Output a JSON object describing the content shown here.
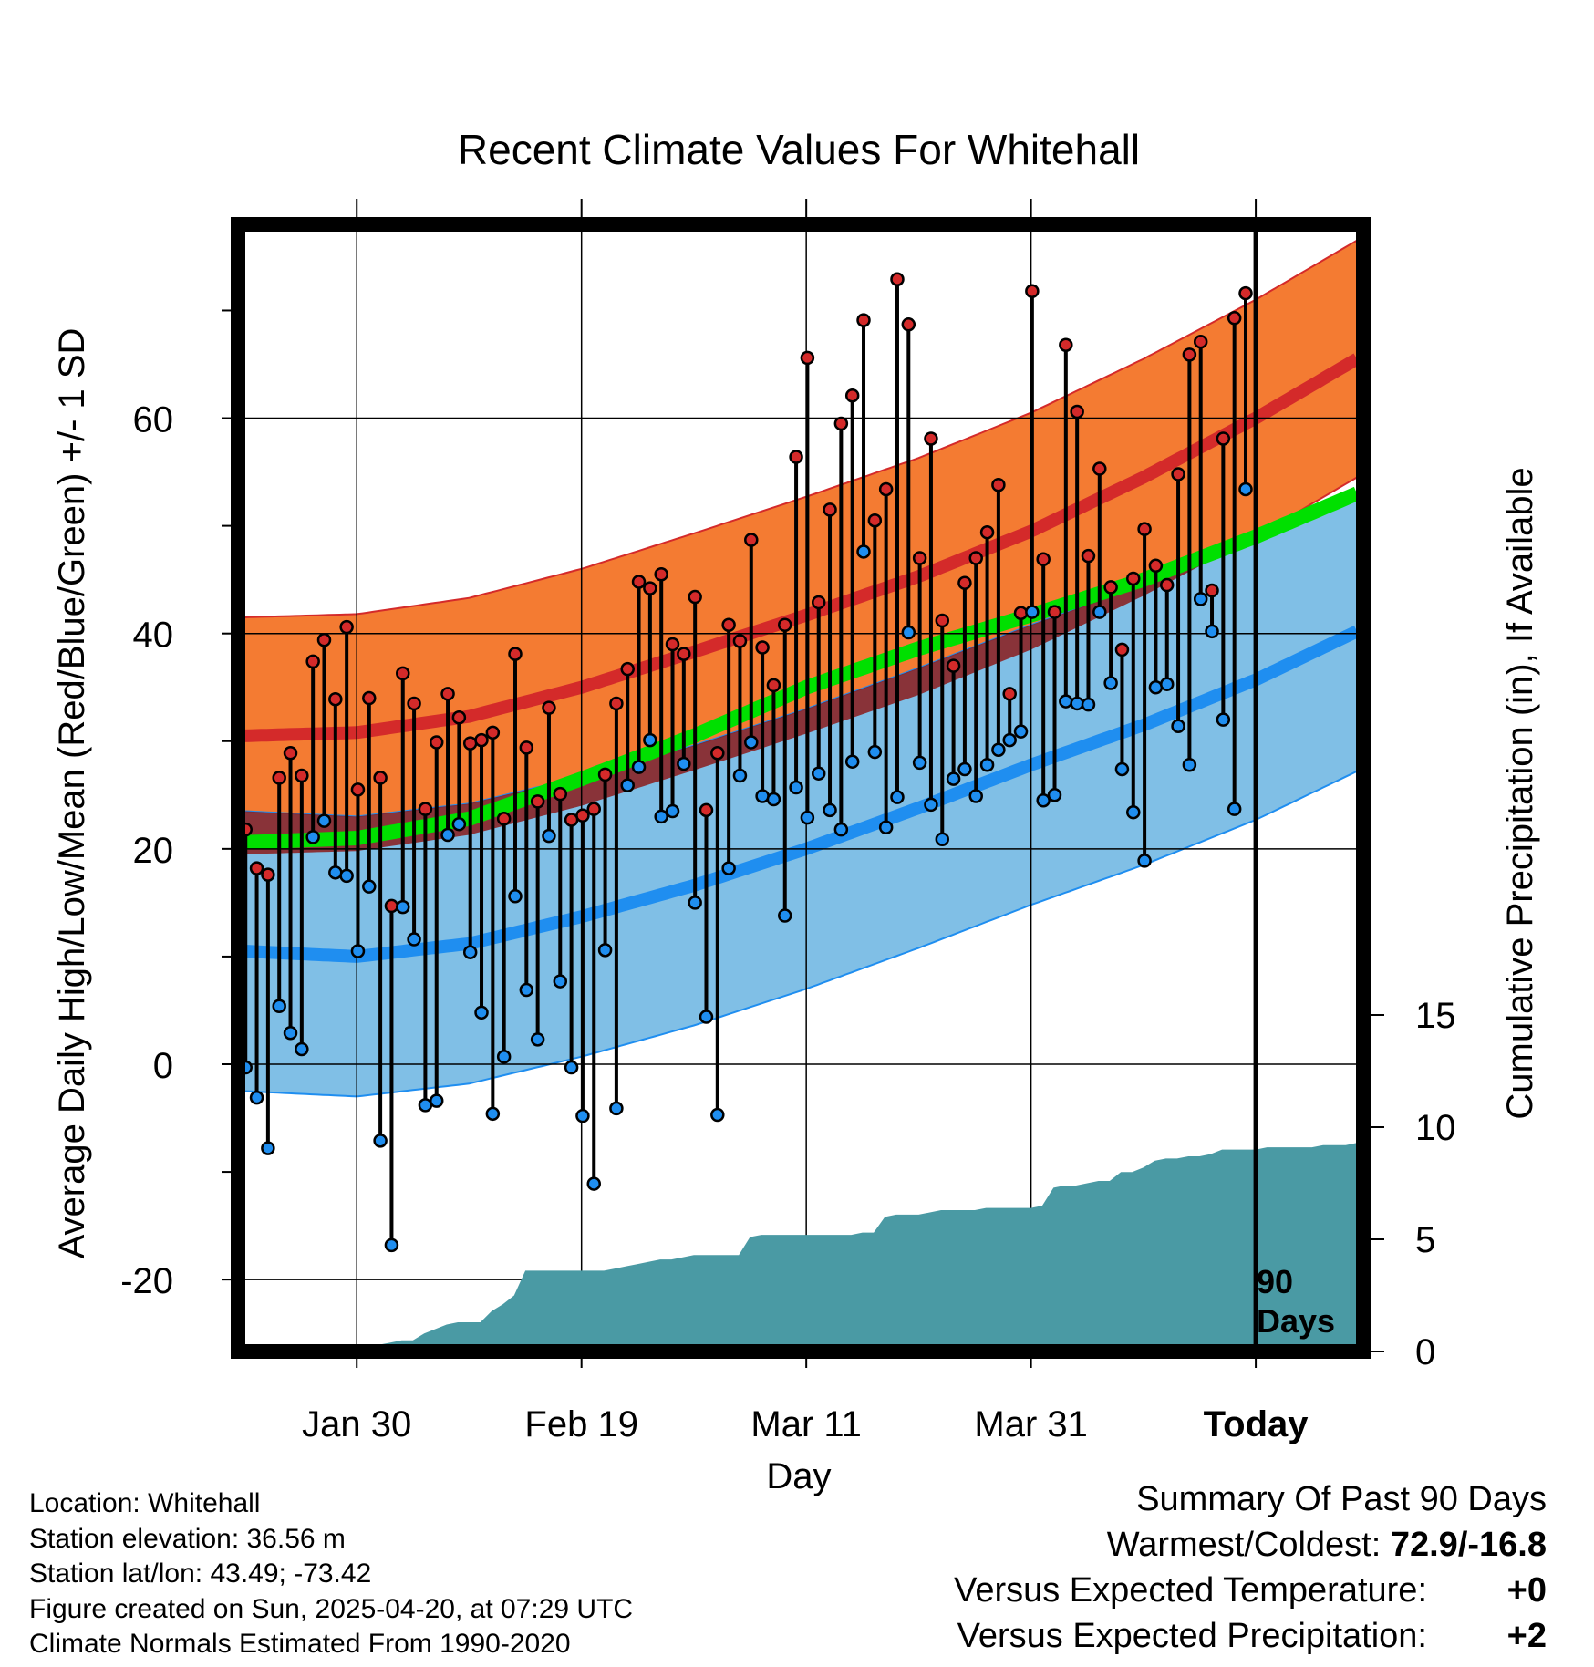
{
  "chart_data": {
    "type": "line",
    "title": "Recent Climate Values For Whitehall",
    "xlabel": "Day",
    "ylabel": "Average Daily High/Low/Mean (Red/Blue/Green) +/- 1 SD",
    "y2label": "Cumulative Precipitation (in), If Available",
    "x_ticks": [
      "Jan 30",
      "Feb 19",
      "Mar 11",
      "Mar 31",
      "Today"
    ],
    "y_ticks": [
      "-20",
      "0",
      "20",
      "40",
      "60"
    ],
    "y2_ticks": [
      "0",
      "5",
      "10",
      "15"
    ],
    "ylim": [
      -26,
      78
    ],
    "y2lim": [
      0,
      15
    ],
    "grid": true,
    "today_label": "90\nDays",
    "normals": {
      "day": [
        0,
        10,
        20,
        30,
        40,
        50,
        60,
        70,
        80,
        90,
        99
      ],
      "high": [
        30.5,
        30.8,
        32.3,
        35.0,
        38.3,
        41.7,
        45.3,
        49.5,
        54.5,
        60.0,
        65.5
      ],
      "high_sd": 11.0,
      "low": [
        10.5,
        10.0,
        11.2,
        13.7,
        16.6,
        20.0,
        23.8,
        27.8,
        31.5,
        35.7,
        40.2
      ],
      "low_sd": 13.0,
      "mean": [
        20.6,
        21.0,
        22.8,
        26.5,
        30.5,
        35.0,
        38.6,
        41.7,
        45.0,
        49.0,
        53.0
      ]
    },
    "series": [
      {
        "name": "High",
        "values": [
          21.8,
          18.2,
          17.6,
          26.6,
          28.9,
          26.8,
          37.4,
          39.4,
          33.9,
          40.6,
          25.5,
          34.0,
          26.6,
          14.7,
          36.3,
          33.5,
          23.7,
          29.9,
          34.4,
          32.2,
          29.8,
          30.1,
          30.8,
          22.8,
          38.1,
          29.4,
          24.4,
          33.1,
          25.1,
          22.7,
          23.1,
          23.7,
          26.9,
          33.5,
          36.7,
          44.8,
          44.2,
          45.5,
          39.0,
          38.1,
          43.4,
          23.6,
          28.9,
          40.8,
          39.3,
          48.7,
          38.7,
          35.2,
          40.8,
          56.4,
          65.6,
          42.9,
          51.5,
          59.5,
          62.1,
          69.1,
          50.5,
          53.4,
          72.9,
          68.7,
          47.0,
          58.1,
          41.2,
          37.0,
          44.7,
          47.0,
          49.4,
          53.8,
          34.4,
          41.9,
          71.8,
          46.9,
          42.0,
          66.8,
          60.6,
          47.2,
          55.3,
          44.3,
          38.5,
          45.1,
          49.7,
          46.3,
          44.5,
          54.8,
          65.9,
          67.1,
          44.0,
          58.1,
          69.3,
          71.6
        ]
      },
      {
        "name": "Low",
        "values": [
          -0.3,
          -3.1,
          -7.8,
          5.4,
          2.9,
          1.4,
          21.1,
          22.6,
          17.8,
          17.5,
          10.5,
          16.5,
          -7.1,
          -16.8,
          14.6,
          11.6,
          -3.8,
          -3.4,
          21.3,
          22.3,
          10.4,
          4.8,
          -4.6,
          0.7,
          15.6,
          6.9,
          2.3,
          21.2,
          7.7,
          -0.3,
          -4.8,
          -11.1,
          10.6,
          -4.1,
          25.9,
          27.6,
          30.1,
          23.0,
          23.5,
          27.9,
          15.0,
          4.4,
          -4.7,
          18.2,
          26.8,
          29.9,
          24.9,
          24.6,
          13.8,
          25.7,
          22.9,
          27.0,
          23.6,
          21.8,
          28.1,
          47.6,
          29.0,
          22.0,
          24.8,
          40.1,
          28.0,
          24.1,
          20.9,
          26.5,
          27.4,
          24.9,
          27.8,
          29.2,
          30.1,
          30.9,
          42.0,
          24.5,
          25.0,
          33.7,
          33.5,
          33.4,
          42.0,
          35.4,
          27.4,
          23.4,
          18.9,
          35.0,
          35.3,
          31.4,
          27.8,
          43.2,
          40.2,
          32.0,
          23.7,
          53.4
        ]
      }
    ],
    "precip": {
      "name": "Cumulative Precipitation",
      "day": [
        0,
        10,
        11,
        12,
        13,
        14,
        15,
        16,
        17,
        18,
        19,
        20,
        21,
        22,
        23,
        24,
        25,
        26,
        27,
        28,
        29,
        30,
        31,
        32,
        33,
        34,
        35,
        36,
        37,
        38,
        39,
        40,
        41,
        42,
        43,
        44,
        45,
        46,
        47,
        48,
        49,
        50,
        51,
        52,
        53,
        54,
        55,
        56,
        57,
        58,
        59,
        60,
        61,
        62,
        63,
        64,
        65,
        66,
        67,
        68,
        69,
        70,
        71,
        72,
        73,
        74,
        75,
        76,
        77,
        78,
        79,
        80,
        81,
        82,
        83,
        84,
        85,
        86,
        87,
        88,
        89,
        90,
        91,
        92,
        93,
        94,
        95,
        96,
        97,
        98,
        99
      ],
      "values": [
        0,
        0,
        0.2,
        0.3,
        0.4,
        0.5,
        0.5,
        0.8,
        1.0,
        1.2,
        1.3,
        1.3,
        1.3,
        1.8,
        2.1,
        2.5,
        3.6,
        3.6,
        3.6,
        3.6,
        3.6,
        3.6,
        3.6,
        3.6,
        3.7,
        3.8,
        3.9,
        4.0,
        4.1,
        4.1,
        4.2,
        4.3,
        4.3,
        4.3,
        4.3,
        4.3,
        5.1,
        5.2,
        5.2,
        5.2,
        5.2,
        5.2,
        5.2,
        5.2,
        5.2,
        5.2,
        5.3,
        5.3,
        6.0,
        6.1,
        6.1,
        6.1,
        6.2,
        6.3,
        6.3,
        6.3,
        6.3,
        6.4,
        6.4,
        6.4,
        6.4,
        6.4,
        6.5,
        7.3,
        7.4,
        7.4,
        7.5,
        7.6,
        7.6,
        8.0,
        8.0,
        8.2,
        8.5,
        8.6,
        8.6,
        8.7,
        8.7,
        8.8,
        9.0,
        9.0,
        9.0,
        9.0,
        9.1,
        9.1,
        9.1,
        9.1,
        9.1,
        9.2,
        9.2,
        9.2,
        9.3
      ]
    }
  },
  "footer": {
    "location": "Location: Whitehall",
    "elevation": "Station elevation: 36.56 m",
    "latlon": "Station lat/lon: 43.49; -73.42",
    "created": "Figure created on Sun, 2025-04-20, at 07:29 UTC",
    "normals": "Climate Normals Estimated From 1990-2020"
  },
  "summary": {
    "heading": "Summary Of Past 90 Days",
    "warmest_label": "Warmest/Coldest:",
    "warmest_value": "72.9/-16.8",
    "temp_label": "Versus Expected Temperature:",
    "temp_value": "+0",
    "temp_color": "#cc1f1f",
    "precip_label": "Versus Expected Precipitation:",
    "precip_value": "+2",
    "precip_color": "#17c417"
  },
  "colors": {
    "high_band": "#f47b32",
    "high_line": "#d42a2a",
    "low_band": "#80bfe6",
    "low_line": "#1f8ef0",
    "overlap": "#8b1a1a",
    "mean_line": "#00e000",
    "precip_fill": "#4a9aa4",
    "high_dot": "#d42a2a",
    "low_dot": "#1f8ef0"
  }
}
